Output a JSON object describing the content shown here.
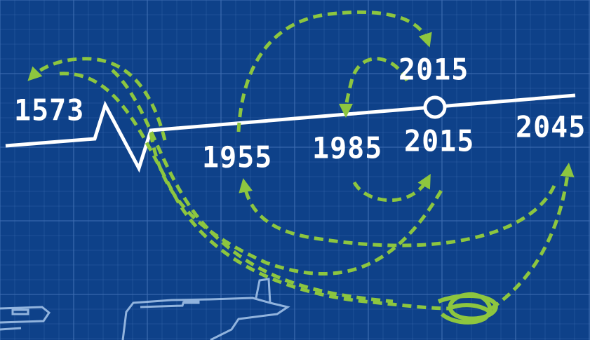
{
  "timeline": {
    "years": [
      {
        "id": "y1573",
        "label": "1573"
      },
      {
        "id": "y1955",
        "label": "1955"
      },
      {
        "id": "y1985",
        "label": "1985"
      },
      {
        "id": "y2015",
        "label": "2015"
      },
      {
        "id": "y2045",
        "label": "2045"
      },
      {
        "id": "y2015_alt",
        "label": "2015"
      }
    ]
  },
  "colors": {
    "background": "#0e4189",
    "grid_line": "#3f6fb3",
    "timeline": "#ffffff",
    "arrow": "#8dc63f",
    "sketch": "#9fc3ea"
  },
  "icons": [
    "knot-icon",
    "car-sketch",
    "circle-marker-icon"
  ]
}
